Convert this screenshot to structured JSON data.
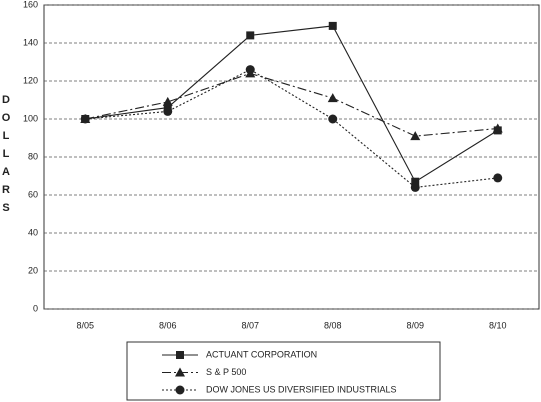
{
  "chart_data": {
    "type": "line",
    "y_label": "DOLLARS",
    "categories": [
      "8/05",
      "8/06",
      "8/07",
      "8/08",
      "8/09",
      "8/10"
    ],
    "series": [
      {
        "name": "ACTUANT CORPORATION",
        "color": "#222222",
        "marker": "square",
        "line_style": "solid",
        "values": [
          100,
          106,
          144,
          149,
          67,
          94
        ]
      },
      {
        "name": "S & P 500",
        "color": "#222222",
        "marker": "triangle",
        "line_style": "dashdot",
        "values": [
          100,
          109,
          124,
          111,
          91,
          95
        ]
      },
      {
        "name": "DOW JONES US DIVERSIFIED INDUSTRIALS",
        "color": "#222222",
        "marker": "circle",
        "line_style": "dotted",
        "values": [
          100,
          104,
          126,
          100,
          64,
          69
        ]
      }
    ],
    "ylim": [
      0,
      160
    ],
    "yticks": [
      0,
      20,
      40,
      60,
      80,
      100,
      120,
      140,
      160
    ],
    "grid": true,
    "legend": "bottom"
  }
}
